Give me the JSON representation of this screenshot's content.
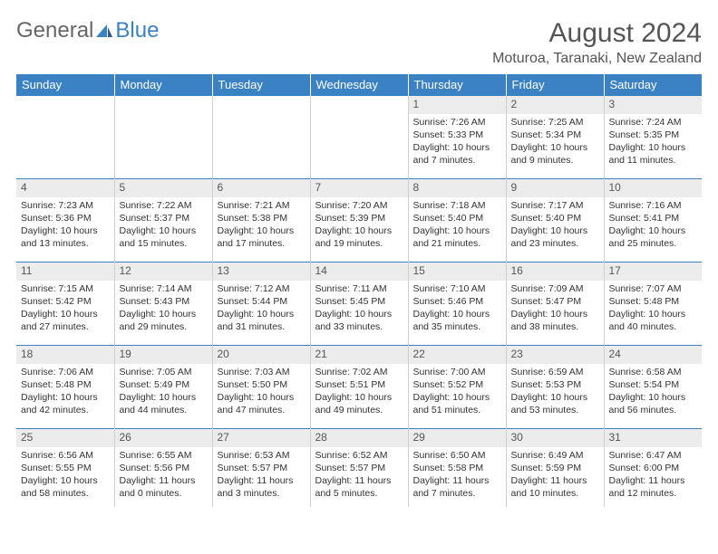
{
  "logo": {
    "text1": "General",
    "text2": "Blue"
  },
  "title": "August 2024",
  "location": "Moturoa, Taranaki, New Zealand",
  "colors": {
    "header_bg": "#3b82c4",
    "header_text": "#ffffff",
    "daynum_bg": "#ececec",
    "border": "#3b82c4",
    "cell_divider": "#d0d0d0",
    "text": "#333333",
    "title_text": "#555555"
  },
  "typography": {
    "title_fontsize": 30,
    "location_fontsize": 16,
    "dayheader_fontsize": 13,
    "daynum_fontsize": 12,
    "body_fontsize": 10.5
  },
  "day_headers": [
    "Sunday",
    "Monday",
    "Tuesday",
    "Wednesday",
    "Thursday",
    "Friday",
    "Saturday"
  ],
  "weeks": [
    [
      null,
      null,
      null,
      null,
      {
        "n": "1",
        "sr": "7:26 AM",
        "ss": "5:33 PM",
        "dl": "10 hours and 7 minutes."
      },
      {
        "n": "2",
        "sr": "7:25 AM",
        "ss": "5:34 PM",
        "dl": "10 hours and 9 minutes."
      },
      {
        "n": "3",
        "sr": "7:24 AM",
        "ss": "5:35 PM",
        "dl": "10 hours and 11 minutes."
      }
    ],
    [
      {
        "n": "4",
        "sr": "7:23 AM",
        "ss": "5:36 PM",
        "dl": "10 hours and 13 minutes."
      },
      {
        "n": "5",
        "sr": "7:22 AM",
        "ss": "5:37 PM",
        "dl": "10 hours and 15 minutes."
      },
      {
        "n": "6",
        "sr": "7:21 AM",
        "ss": "5:38 PM",
        "dl": "10 hours and 17 minutes."
      },
      {
        "n": "7",
        "sr": "7:20 AM",
        "ss": "5:39 PM",
        "dl": "10 hours and 19 minutes."
      },
      {
        "n": "8",
        "sr": "7:18 AM",
        "ss": "5:40 PM",
        "dl": "10 hours and 21 minutes."
      },
      {
        "n": "9",
        "sr": "7:17 AM",
        "ss": "5:40 PM",
        "dl": "10 hours and 23 minutes."
      },
      {
        "n": "10",
        "sr": "7:16 AM",
        "ss": "5:41 PM",
        "dl": "10 hours and 25 minutes."
      }
    ],
    [
      {
        "n": "11",
        "sr": "7:15 AM",
        "ss": "5:42 PM",
        "dl": "10 hours and 27 minutes."
      },
      {
        "n": "12",
        "sr": "7:14 AM",
        "ss": "5:43 PM",
        "dl": "10 hours and 29 minutes."
      },
      {
        "n": "13",
        "sr": "7:12 AM",
        "ss": "5:44 PM",
        "dl": "10 hours and 31 minutes."
      },
      {
        "n": "14",
        "sr": "7:11 AM",
        "ss": "5:45 PM",
        "dl": "10 hours and 33 minutes."
      },
      {
        "n": "15",
        "sr": "7:10 AM",
        "ss": "5:46 PM",
        "dl": "10 hours and 35 minutes."
      },
      {
        "n": "16",
        "sr": "7:09 AM",
        "ss": "5:47 PM",
        "dl": "10 hours and 38 minutes."
      },
      {
        "n": "17",
        "sr": "7:07 AM",
        "ss": "5:48 PM",
        "dl": "10 hours and 40 minutes."
      }
    ],
    [
      {
        "n": "18",
        "sr": "7:06 AM",
        "ss": "5:48 PM",
        "dl": "10 hours and 42 minutes."
      },
      {
        "n": "19",
        "sr": "7:05 AM",
        "ss": "5:49 PM",
        "dl": "10 hours and 44 minutes."
      },
      {
        "n": "20",
        "sr": "7:03 AM",
        "ss": "5:50 PM",
        "dl": "10 hours and 47 minutes."
      },
      {
        "n": "21",
        "sr": "7:02 AM",
        "ss": "5:51 PM",
        "dl": "10 hours and 49 minutes."
      },
      {
        "n": "22",
        "sr": "7:00 AM",
        "ss": "5:52 PM",
        "dl": "10 hours and 51 minutes."
      },
      {
        "n": "23",
        "sr": "6:59 AM",
        "ss": "5:53 PM",
        "dl": "10 hours and 53 minutes."
      },
      {
        "n": "24",
        "sr": "6:58 AM",
        "ss": "5:54 PM",
        "dl": "10 hours and 56 minutes."
      }
    ],
    [
      {
        "n": "25",
        "sr": "6:56 AM",
        "ss": "5:55 PM",
        "dl": "10 hours and 58 minutes."
      },
      {
        "n": "26",
        "sr": "6:55 AM",
        "ss": "5:56 PM",
        "dl": "11 hours and 0 minutes."
      },
      {
        "n": "27",
        "sr": "6:53 AM",
        "ss": "5:57 PM",
        "dl": "11 hours and 3 minutes."
      },
      {
        "n": "28",
        "sr": "6:52 AM",
        "ss": "5:57 PM",
        "dl": "11 hours and 5 minutes."
      },
      {
        "n": "29",
        "sr": "6:50 AM",
        "ss": "5:58 PM",
        "dl": "11 hours and 7 minutes."
      },
      {
        "n": "30",
        "sr": "6:49 AM",
        "ss": "5:59 PM",
        "dl": "11 hours and 10 minutes."
      },
      {
        "n": "31",
        "sr": "6:47 AM",
        "ss": "6:00 PM",
        "dl": "11 hours and 12 minutes."
      }
    ]
  ],
  "labels": {
    "sunrise": "Sunrise: ",
    "sunset": "Sunset: ",
    "daylight": "Daylight: "
  }
}
